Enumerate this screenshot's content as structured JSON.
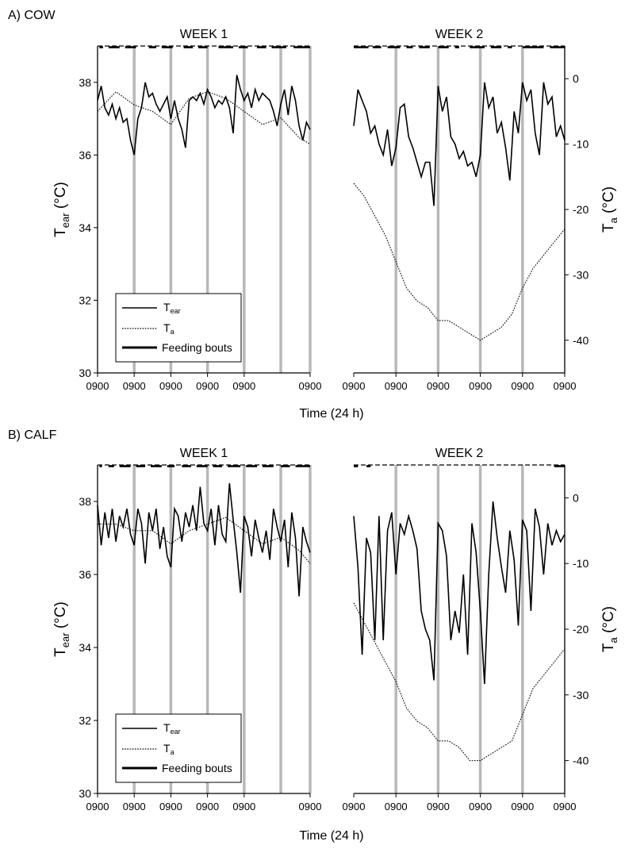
{
  "figure": {
    "x_label": "Time (24 h)",
    "tick_label": "0900"
  },
  "legend": {
    "t_ear_main": "T",
    "t_ear_sub": "ear",
    "t_a_main": "T",
    "t_a_sub": "a",
    "feeding": "Feeding bouts"
  },
  "y_left": {
    "label_main": "T",
    "label_sub": "ear",
    "label_unit": " (°C)"
  },
  "y_right": {
    "label_main": "T",
    "label_sub": "a",
    "label_unit": " (°C)"
  },
  "chart_data": [
    {
      "type": "line",
      "panel_label": "A) COW",
      "weeks": [
        {
          "name": "WEEK 1",
          "days": 5.8,
          "day_ticks": [
            "0900",
            "0900",
            "0900",
            "0900",
            "0900",
            "0900"
          ],
          "series": [
            {
              "name": "Tear",
              "axis": "left",
              "x": [
                0,
                0.1,
                0.2,
                0.3,
                0.4,
                0.5,
                0.6,
                0.7,
                0.8,
                0.9,
                1.0,
                1.1,
                1.2,
                1.3,
                1.4,
                1.5,
                1.6,
                1.7,
                1.8,
                1.9,
                2.0,
                2.1,
                2.2,
                2.3,
                2.4,
                2.5,
                2.6,
                2.7,
                2.8,
                2.9,
                3.0,
                3.1,
                3.2,
                3.3,
                3.4,
                3.5,
                3.6,
                3.7,
                3.8,
                3.9,
                4.0,
                4.1,
                4.2,
                4.3,
                4.4,
                4.5,
                4.6,
                4.7,
                4.8,
                4.9,
                5.0,
                5.1,
                5.2,
                5.3,
                5.4,
                5.5,
                5.6,
                5.7,
                5.8
              ],
              "y": [
                37.5,
                37.9,
                37.3,
                37.1,
                37.4,
                37.0,
                37.3,
                36.9,
                37.0,
                36.4,
                36.0,
                37.0,
                37.3,
                38.0,
                37.6,
                37.7,
                37.4,
                37.2,
                37.4,
                37.6,
                37.0,
                37.5,
                37.0,
                36.7,
                36.2,
                37.5,
                37.6,
                37.5,
                37.7,
                37.4,
                37.8,
                37.6,
                37.3,
                37.5,
                37.4,
                37.6,
                37.3,
                36.6,
                38.2,
                37.8,
                37.5,
                37.7,
                37.3,
                37.8,
                37.5,
                37.7,
                37.6,
                37.5,
                37.2,
                36.8,
                37.4,
                37.8,
                37.1,
                37.9,
                37.5,
                36.8,
                36.4,
                36.9,
                36.7
              ]
            },
            {
              "name": "Ta",
              "axis": "right",
              "x": [
                0,
                0.5,
                1.0,
                1.5,
                2.0,
                2.5,
                3.0,
                3.5,
                4.0,
                4.5,
                5.0,
                5.5,
                5.8
              ],
              "y": [
                -5,
                -2,
                -4,
                -5,
                -7,
                -3,
                -2,
                -3,
                -5,
                -7,
                -6,
                -9,
                -10
              ]
            }
          ],
          "feeding_bouts": [
            [
              0.05,
              0.15
            ],
            [
              0.3,
              0.6
            ],
            [
              0.75,
              1.05
            ],
            [
              1.4,
              1.6
            ],
            [
              1.75,
              2.05
            ],
            [
              2.35,
              2.6
            ],
            [
              2.75,
              3.0
            ],
            [
              3.3,
              3.7
            ],
            [
              3.85,
              4.1
            ],
            [
              4.35,
              4.6
            ],
            [
              4.75,
              5.15
            ],
            [
              5.35,
              5.8
            ]
          ]
        },
        {
          "name": "WEEK 2",
          "days": 5.0,
          "day_ticks": [
            "0900",
            "0900",
            "0900",
            "0900",
            "0900",
            "0900"
          ],
          "series": [
            {
              "name": "Tear",
              "axis": "left",
              "x": [
                0,
                0.1,
                0.2,
                0.3,
                0.4,
                0.5,
                0.6,
                0.7,
                0.8,
                0.9,
                1.0,
                1.1,
                1.2,
                1.3,
                1.4,
                1.5,
                1.6,
                1.7,
                1.8,
                1.9,
                2.0,
                2.1,
                2.2,
                2.3,
                2.4,
                2.5,
                2.6,
                2.7,
                2.8,
                2.9,
                3.0,
                3.1,
                3.2,
                3.3,
                3.4,
                3.5,
                3.6,
                3.7,
                3.8,
                3.9,
                4.0,
                4.1,
                4.2,
                4.3,
                4.4,
                4.5,
                4.6,
                4.7,
                4.8,
                4.9,
                5.0
              ],
              "y": [
                36.8,
                37.8,
                37.5,
                37.2,
                36.6,
                36.8,
                36.3,
                36.0,
                36.7,
                35.7,
                36.2,
                37.3,
                37.4,
                36.5,
                36.2,
                35.8,
                35.4,
                35.8,
                35.8,
                34.6,
                37.9,
                37.2,
                37.6,
                36.5,
                36.3,
                35.9,
                36.1,
                35.7,
                35.8,
                35.4,
                36.0,
                38.0,
                37.3,
                37.6,
                36.6,
                36.9,
                36.2,
                35.3,
                37.2,
                36.6,
                38.0,
                37.5,
                37.8,
                36.6,
                36.0,
                38.0,
                37.4,
                37.6,
                36.5,
                36.8,
                36.4
              ]
            },
            {
              "name": "Ta",
              "axis": "right",
              "x": [
                0,
                0.25,
                0.5,
                0.75,
                1.0,
                1.25,
                1.5,
                1.75,
                2.0,
                2.25,
                2.5,
                2.75,
                3.0,
                3.25,
                3.5,
                3.75,
                4.0,
                4.25,
                4.5,
                4.75,
                5.0
              ],
              "y": [
                -16,
                -18,
                -21,
                -24,
                -28,
                -32,
                -34,
                -35,
                -37,
                -37,
                -38,
                -39,
                -40,
                -39,
                -38,
                -36,
                -32,
                -29,
                -27,
                -25,
                -23
              ]
            }
          ],
          "feeding_bouts": [
            [
              0.0,
              0.35
            ],
            [
              0.45,
              0.65
            ],
            [
              0.8,
              1.1
            ],
            [
              1.25,
              1.4
            ],
            [
              1.55,
              1.8
            ],
            [
              2.0,
              2.25
            ],
            [
              2.4,
              2.5
            ],
            [
              2.75,
              3.1
            ],
            [
              3.25,
              3.5
            ],
            [
              3.65,
              3.75
            ],
            [
              4.0,
              4.5
            ],
            [
              4.65,
              5.0
            ]
          ]
        }
      ],
      "ylim_left": [
        30,
        39
      ],
      "yticks_left": [
        30,
        32,
        34,
        36,
        38
      ],
      "ylim_right": [
        -45,
        5
      ],
      "yticks_right": [
        -40,
        -30,
        -20,
        -10,
        0
      ],
      "legend_position": "bottom-left",
      "grid": false
    },
    {
      "type": "line",
      "panel_label": "B) CALF",
      "weeks": [
        {
          "name": "WEEK 1",
          "days": 5.8,
          "day_ticks": [
            "0900",
            "0900",
            "0900",
            "0900",
            "0900",
            "0900"
          ],
          "series": [
            {
              "name": "Tear",
              "axis": "left",
              "x": [
                0,
                0.1,
                0.2,
                0.3,
                0.4,
                0.5,
                0.6,
                0.7,
                0.8,
                0.9,
                1.0,
                1.1,
                1.2,
                1.3,
                1.4,
                1.5,
                1.6,
                1.7,
                1.8,
                1.9,
                2.0,
                2.1,
                2.2,
                2.3,
                2.4,
                2.5,
                2.6,
                2.7,
                2.8,
                2.9,
                3.0,
                3.1,
                3.2,
                3.3,
                3.4,
                3.5,
                3.6,
                3.7,
                3.8,
                3.9,
                4.0,
                4.1,
                4.2,
                4.3,
                4.4,
                4.5,
                4.6,
                4.7,
                4.8,
                4.9,
                5.0,
                5.1,
                5.2,
                5.3,
                5.4,
                5.5,
                5.6,
                5.7,
                5.8
              ],
              "y": [
                37.9,
                36.8,
                37.7,
                37.0,
                37.8,
                36.9,
                37.6,
                37.3,
                37.8,
                37.1,
                36.8,
                37.8,
                37.4,
                36.3,
                37.7,
                37.2,
                37.8,
                36.7,
                37.3,
                36.5,
                36.2,
                37.8,
                37.6,
                36.9,
                37.7,
                37.3,
                37.9,
                37.2,
                38.4,
                37.4,
                37.2,
                37.8,
                36.8,
                37.9,
                37.1,
                36.9,
                38.5,
                37.5,
                36.6,
                35.5,
                37.6,
                37.3,
                36.5,
                37.5,
                37.0,
                36.6,
                37.2,
                36.4,
                37.8,
                37.3,
                36.9,
                37.5,
                36.2,
                37.7,
                37.0,
                35.4,
                37.3,
                36.9,
                36.6
              ]
            },
            {
              "name": "Ta",
              "axis": "right",
              "x": [
                0,
                0.5,
                1.0,
                1.5,
                2.0,
                2.5,
                3.0,
                3.5,
                4.0,
                4.5,
                5.0,
                5.5,
                5.8
              ],
              "y": [
                -4,
                -4,
                -5,
                -5,
                -7,
                -5,
                -4,
                -3,
                -5,
                -7,
                -6,
                -8,
                -10
              ]
            }
          ],
          "feeding_bouts": [
            [
              0.05,
              0.12
            ],
            [
              0.3,
              0.45
            ],
            [
              0.6,
              0.9
            ],
            [
              1.05,
              1.3
            ],
            [
              1.45,
              1.75
            ],
            [
              1.9,
              2.1
            ],
            [
              2.3,
              2.55
            ],
            [
              2.7,
              3.0
            ],
            [
              3.15,
              3.4
            ],
            [
              3.55,
              3.9
            ],
            [
              4.05,
              4.35
            ],
            [
              4.5,
              4.8
            ],
            [
              5.0,
              5.25
            ],
            [
              5.4,
              5.8
            ]
          ]
        },
        {
          "name": "WEEK 2",
          "days": 5.0,
          "day_ticks": [
            "0900",
            "0900",
            "0900",
            "0900",
            "0900",
            "0900"
          ],
          "series": [
            {
              "name": "Tear",
              "axis": "left",
              "x": [
                0,
                0.1,
                0.2,
                0.3,
                0.4,
                0.5,
                0.6,
                0.7,
                0.8,
                0.9,
                1.0,
                1.1,
                1.2,
                1.3,
                1.4,
                1.5,
                1.6,
                1.7,
                1.8,
                1.9,
                2.0,
                2.1,
                2.2,
                2.3,
                2.4,
                2.5,
                2.6,
                2.7,
                2.8,
                2.9,
                3.0,
                3.1,
                3.2,
                3.3,
                3.4,
                3.5,
                3.6,
                3.7,
                3.8,
                3.9,
                4.0,
                4.1,
                4.2,
                4.3,
                4.4,
                4.5,
                4.6,
                4.7,
                4.8,
                4.9,
                5.0
              ],
              "y": [
                37.6,
                36.2,
                33.8,
                37.0,
                36.6,
                34.2,
                37.6,
                34.2,
                37.2,
                37.7,
                36.0,
                37.4,
                37.1,
                37.6,
                37.2,
                36.7,
                35.0,
                34.5,
                34.2,
                33.1,
                37.4,
                37.2,
                36.5,
                34.2,
                35.0,
                34.4,
                36.0,
                33.8,
                37.4,
                36.6,
                35.0,
                33.0,
                36.0,
                38.0,
                37.0,
                36.2,
                35.5,
                37.2,
                36.4,
                34.6,
                37.5,
                37.2,
                35.0,
                37.8,
                37.3,
                36.0,
                37.4,
                36.8,
                37.2,
                36.9,
                37.1
              ]
            },
            {
              "name": "Ta",
              "axis": "right",
              "x": [
                0,
                0.25,
                0.5,
                0.75,
                1.0,
                1.25,
                1.5,
                1.75,
                2.0,
                2.25,
                2.5,
                2.75,
                3.0,
                3.25,
                3.5,
                3.75,
                4.0,
                4.25,
                4.5,
                4.75,
                5.0
              ],
              "y": [
                -16,
                -19,
                -22,
                -25,
                -28,
                -32,
                -34,
                -35,
                -37,
                -37,
                -38,
                -40,
                -40,
                -39,
                -38,
                -37,
                -33,
                -29,
                -27,
                -25,
                -23
              ]
            }
          ],
          "feeding_bouts": [
            [
              0.0,
              0.1
            ],
            [
              0.3,
              0.4
            ],
            [
              4.75,
              5.0
            ]
          ]
        }
      ],
      "ylim_left": [
        30,
        39
      ],
      "yticks_left": [
        30,
        32,
        34,
        36,
        38
      ],
      "ylim_right": [
        -45,
        5
      ],
      "yticks_right": [
        -40,
        -30,
        -20,
        -10,
        0
      ],
      "legend_position": "bottom-left",
      "grid": false
    }
  ]
}
